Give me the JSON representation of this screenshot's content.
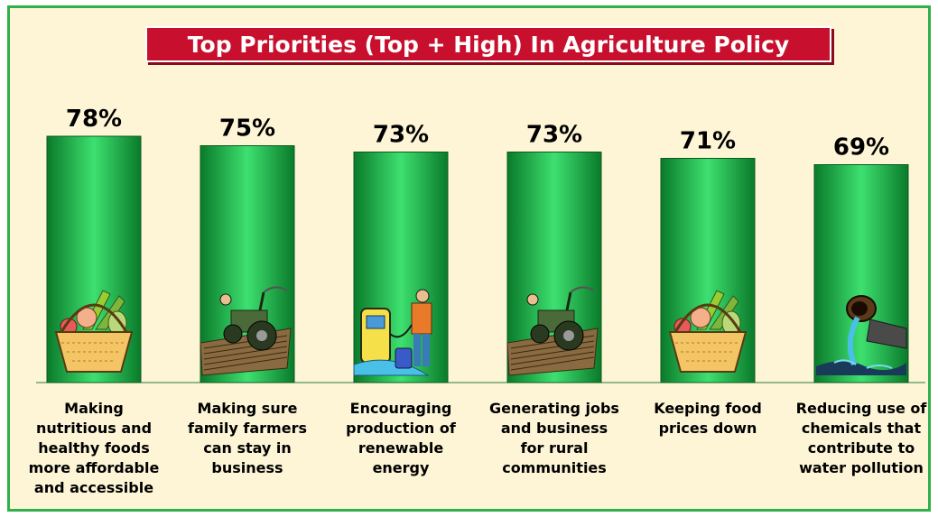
{
  "chart_data": {
    "type": "bar",
    "title": "Top Priorities (Top + High) In Agriculture Policy",
    "categories": [
      "Making nutritious and healthy foods more affordable and accessible",
      "Making sure family farmers can stay in business",
      "Encouraging production of renewable energy",
      "Generating jobs and business for rural communities",
      "Keeping food prices down",
      "Reducing use of chemicals that contribute to water pollution"
    ],
    "category_lines": [
      [
        "Making",
        "nutritious and",
        "healthy foods",
        "more affordable",
        "and accessible"
      ],
      [
        "Making sure",
        "family farmers",
        "can stay in",
        "business"
      ],
      [
        "Encouraging",
        "production of",
        "renewable",
        "energy"
      ],
      [
        "Generating jobs",
        "and business",
        "for rural",
        "communities"
      ],
      [
        "Keeping food",
        "prices down"
      ],
      [
        "Reducing use of",
        "chemicals that",
        "contribute to",
        "water pollution"
      ]
    ],
    "values": [
      78,
      75,
      73,
      73,
      71,
      69
    ],
    "data_labels": [
      "78%",
      "75%",
      "73%",
      "73%",
      "71%",
      "69%"
    ],
    "icons": [
      "fruit-basket-icon",
      "tractor-icon",
      "fuel-pump-icon",
      "tractor-icon",
      "fruit-basket-icon",
      "pollution-pipe-icon"
    ],
    "ylim": [
      0,
      100
    ],
    "grid": false,
    "legend": "none",
    "colors": {
      "bar_dark": "#0a7a2a",
      "bar_light": "#3ee070",
      "background": "#fdf5d6",
      "title_bg": "#c8102e",
      "frame": "#2fb04a"
    }
  }
}
